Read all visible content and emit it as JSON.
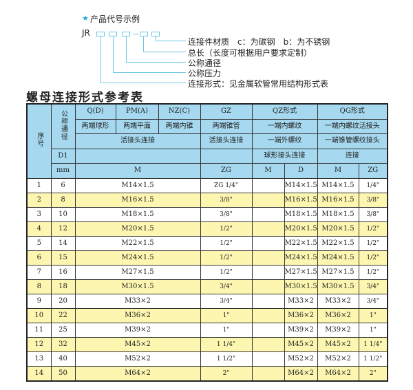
{
  "legend": {
    "title": "产品代号示例",
    "star_icon": "star-icon",
    "code_prefix": "JR",
    "items": [
      "连接件材质　c：为碳钢　b：为不锈钢",
      "总长（长度可根据用户要求定制）",
      "公称通径",
      "公称压力",
      "连接形式：见金属软管常用结构形式表"
    ],
    "line_color": "#6cc6e4"
  },
  "table_title": "螺母连接形式参考表",
  "header": {
    "serial": "序号",
    "nominal_diameter": "公称通径",
    "d1": "D1",
    "mm": "mm",
    "row1": [
      "Q(D)",
      "PM(A)",
      "NZ(C)",
      "GZ",
      "QZ形式",
      "QG形式"
    ],
    "row2": [
      "两端球形",
      "两端平面",
      "两端内锥",
      "两端锥管",
      "一端内螺纹",
      "一端内螺纹活接头"
    ],
    "row3": [
      "活接头连接",
      "活接头连接",
      "一端外螺纹",
      "一端锥管螺纹接头"
    ],
    "row4": [
      "球形接头连接",
      "连接"
    ],
    "row5": [
      "M",
      "ZG",
      "M",
      "D",
      "M",
      "ZG"
    ],
    "color": "#a6d9f0"
  },
  "alt_row_color": "#fdf6b0",
  "rows": [
    {
      "no": "1",
      "dn": "6",
      "m": "M14×1.5",
      "zg": "ZG 1/4\"",
      "qz_m": "",
      "qz_d": "M14×1.5",
      "qg_m": "M14×1.5",
      "qg_zg": "1/4\""
    },
    {
      "no": "2",
      "dn": "8",
      "m": "M16×1.5",
      "zg": "3/8\"",
      "qz_m": "",
      "qz_d": "M16×1.5",
      "qg_m": "M16×1.5",
      "qg_zg": "3/8\""
    },
    {
      "no": "3",
      "dn": "10",
      "m": "M18×1.5",
      "zg": "3/8\"",
      "qz_m": "",
      "qz_d": "M18×1.5",
      "qg_m": "M18×1.5",
      "qg_zg": "3/8\""
    },
    {
      "no": "4",
      "dn": "12",
      "m": "M20×1.5",
      "zg": "1/2\"",
      "qz_m": "",
      "qz_d": "M20×1.5",
      "qg_m": "M20×1.5",
      "qg_zg": "1/2\""
    },
    {
      "no": "5",
      "dn": "14",
      "m": "M22×1.5",
      "zg": "1/2\"",
      "qz_m": "",
      "qz_d": "M22×1.5",
      "qg_m": "M22×1.5",
      "qg_zg": "1/2\""
    },
    {
      "no": "6",
      "dn": "15",
      "m": "M24×1.5",
      "zg": "1/2\"",
      "qz_m": "",
      "qz_d": "M24×1.5",
      "qg_m": "M24×1.5",
      "qg_zg": "1/2\""
    },
    {
      "no": "7",
      "dn": "16",
      "m": "M27×1.5",
      "zg": "1/2\"",
      "qz_m": "",
      "qz_d": "M27×1.5",
      "qg_m": "M27×1.5",
      "qg_zg": "1/2\""
    },
    {
      "no": "8",
      "dn": "18",
      "m": "M30×1.5",
      "zg": "3/4\"",
      "qz_m": "",
      "qz_d": "M30×1.5",
      "qg_m": "M30×1.5",
      "qg_zg": "3/4\""
    },
    {
      "no": "9",
      "dn": "20",
      "m": "M33×2",
      "zg": "3/4\"",
      "qz_m": "",
      "qz_d": "M33×2",
      "qg_m": "M33×2",
      "qg_zg": "3/4\""
    },
    {
      "no": "10",
      "dn": "22",
      "m": "M36×2",
      "zg": "1\"",
      "qz_m": "",
      "qz_d": "M36×2",
      "qg_m": "M36×2",
      "qg_zg": "1\""
    },
    {
      "no": "11",
      "dn": "25",
      "m": "M39×2",
      "zg": "1\"",
      "qz_m": "",
      "qz_d": "M39×2",
      "qg_m": "M39×2",
      "qg_zg": "1\""
    },
    {
      "no": "12",
      "dn": "32",
      "m": "M45×2",
      "zg": "1 1/4\"",
      "qz_m": "",
      "qz_d": "M45×2",
      "qg_m": "M45×2",
      "qg_zg": "1 1/4\""
    },
    {
      "no": "13",
      "dn": "40",
      "m": "M52×2",
      "zg": "1 1/2\"",
      "qz_m": "",
      "qz_d": "M52×2",
      "qg_m": "M52×2",
      "qg_zg": "1 1/2\""
    },
    {
      "no": "14",
      "dn": "50",
      "m": "M64×2",
      "zg": "2\"",
      "qz_m": "",
      "qz_d": "M64×2",
      "qg_m": "M64×2",
      "qg_zg": "2\""
    }
  ]
}
